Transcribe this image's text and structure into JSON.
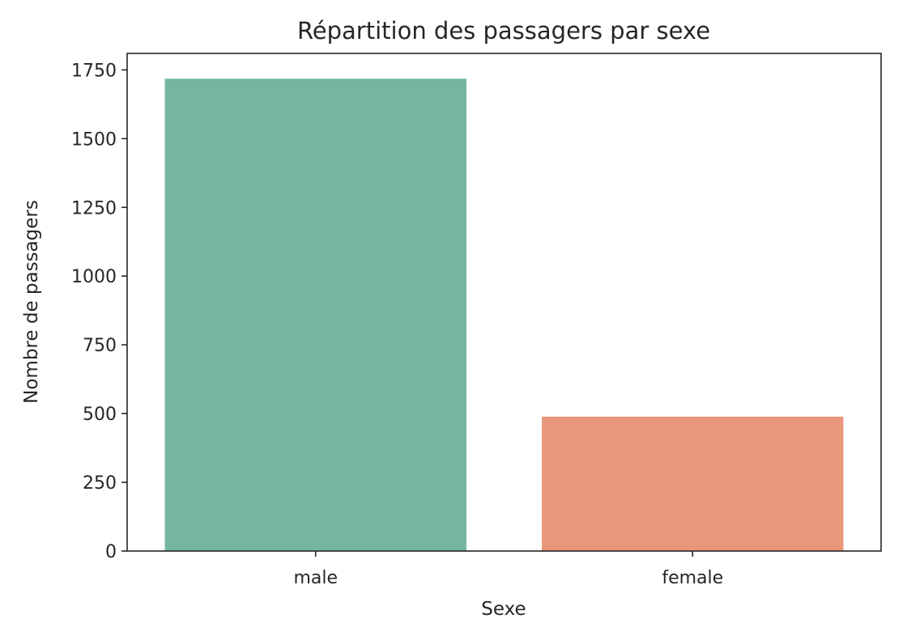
{
  "chart_data": {
    "type": "bar",
    "title": "Répartition des passagers par sexe",
    "xlabel": "Sexe",
    "ylabel": "Nombre de passagers",
    "categories": [
      "male",
      "female"
    ],
    "values": [
      1718,
      489
    ],
    "colors": [
      "#76b6a1",
      "#e8977a"
    ],
    "ylim": [
      0,
      1810
    ],
    "yticks": [
      0,
      250,
      500,
      750,
      1000,
      1250,
      1500,
      1750
    ],
    "grid": false,
    "legend": "none"
  }
}
